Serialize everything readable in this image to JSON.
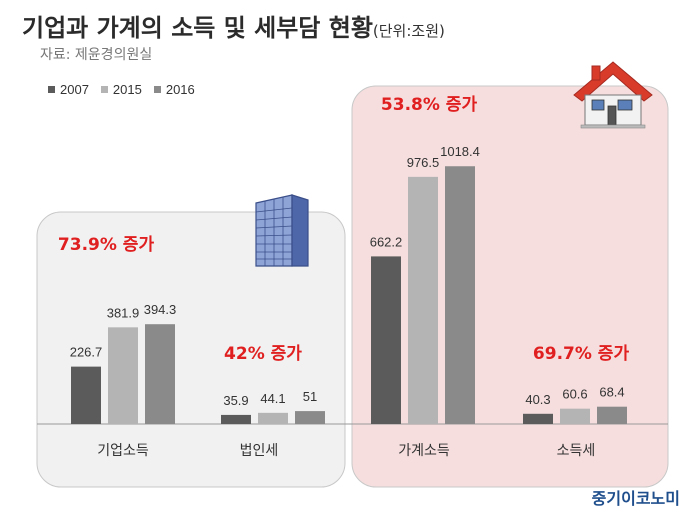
{
  "header": {
    "title": "기업과 가계의 소득 및 세부담 현황",
    "unit": "(단위:조원)",
    "source": "자료: 제윤경의원실"
  },
  "brand": "중기이코노미",
  "colors": {
    "2007": "#5b5b5b",
    "2015": "#b4b4b4",
    "2016": "#8a8a8a",
    "left_panel": "#f1f1f1",
    "right_panel": "#f6dede",
    "annotation": "#e02020"
  },
  "icons": [
    "office-building-icon",
    "house-icon"
  ],
  "chart_data": {
    "type": "bar",
    "categories": [
      "기업소득",
      "법인세",
      "가계소득",
      "소득세"
    ],
    "series": [
      {
        "name": "2007",
        "values": [
          226.7,
          35.9,
          662.2,
          40.3
        ]
      },
      {
        "name": "2015",
        "values": [
          381.9,
          44.1,
          976.5,
          60.6
        ]
      },
      {
        "name": "2016",
        "values": [
          394.3,
          51,
          1018.4,
          68.4
        ]
      }
    ],
    "value_labels": [
      [
        "226.7",
        "35.9",
        "662.2",
        "40.3"
      ],
      [
        "381.9",
        "44.1",
        "976.5",
        "60.6"
      ],
      [
        "394.3",
        "51",
        "1018.4",
        "68.4"
      ]
    ],
    "annotations": [
      "73.9% 증가",
      "42% 증가",
      "53.8% 증가",
      "69.7% 증가"
    ],
    "legend_position": "top-left",
    "grid": false
  }
}
